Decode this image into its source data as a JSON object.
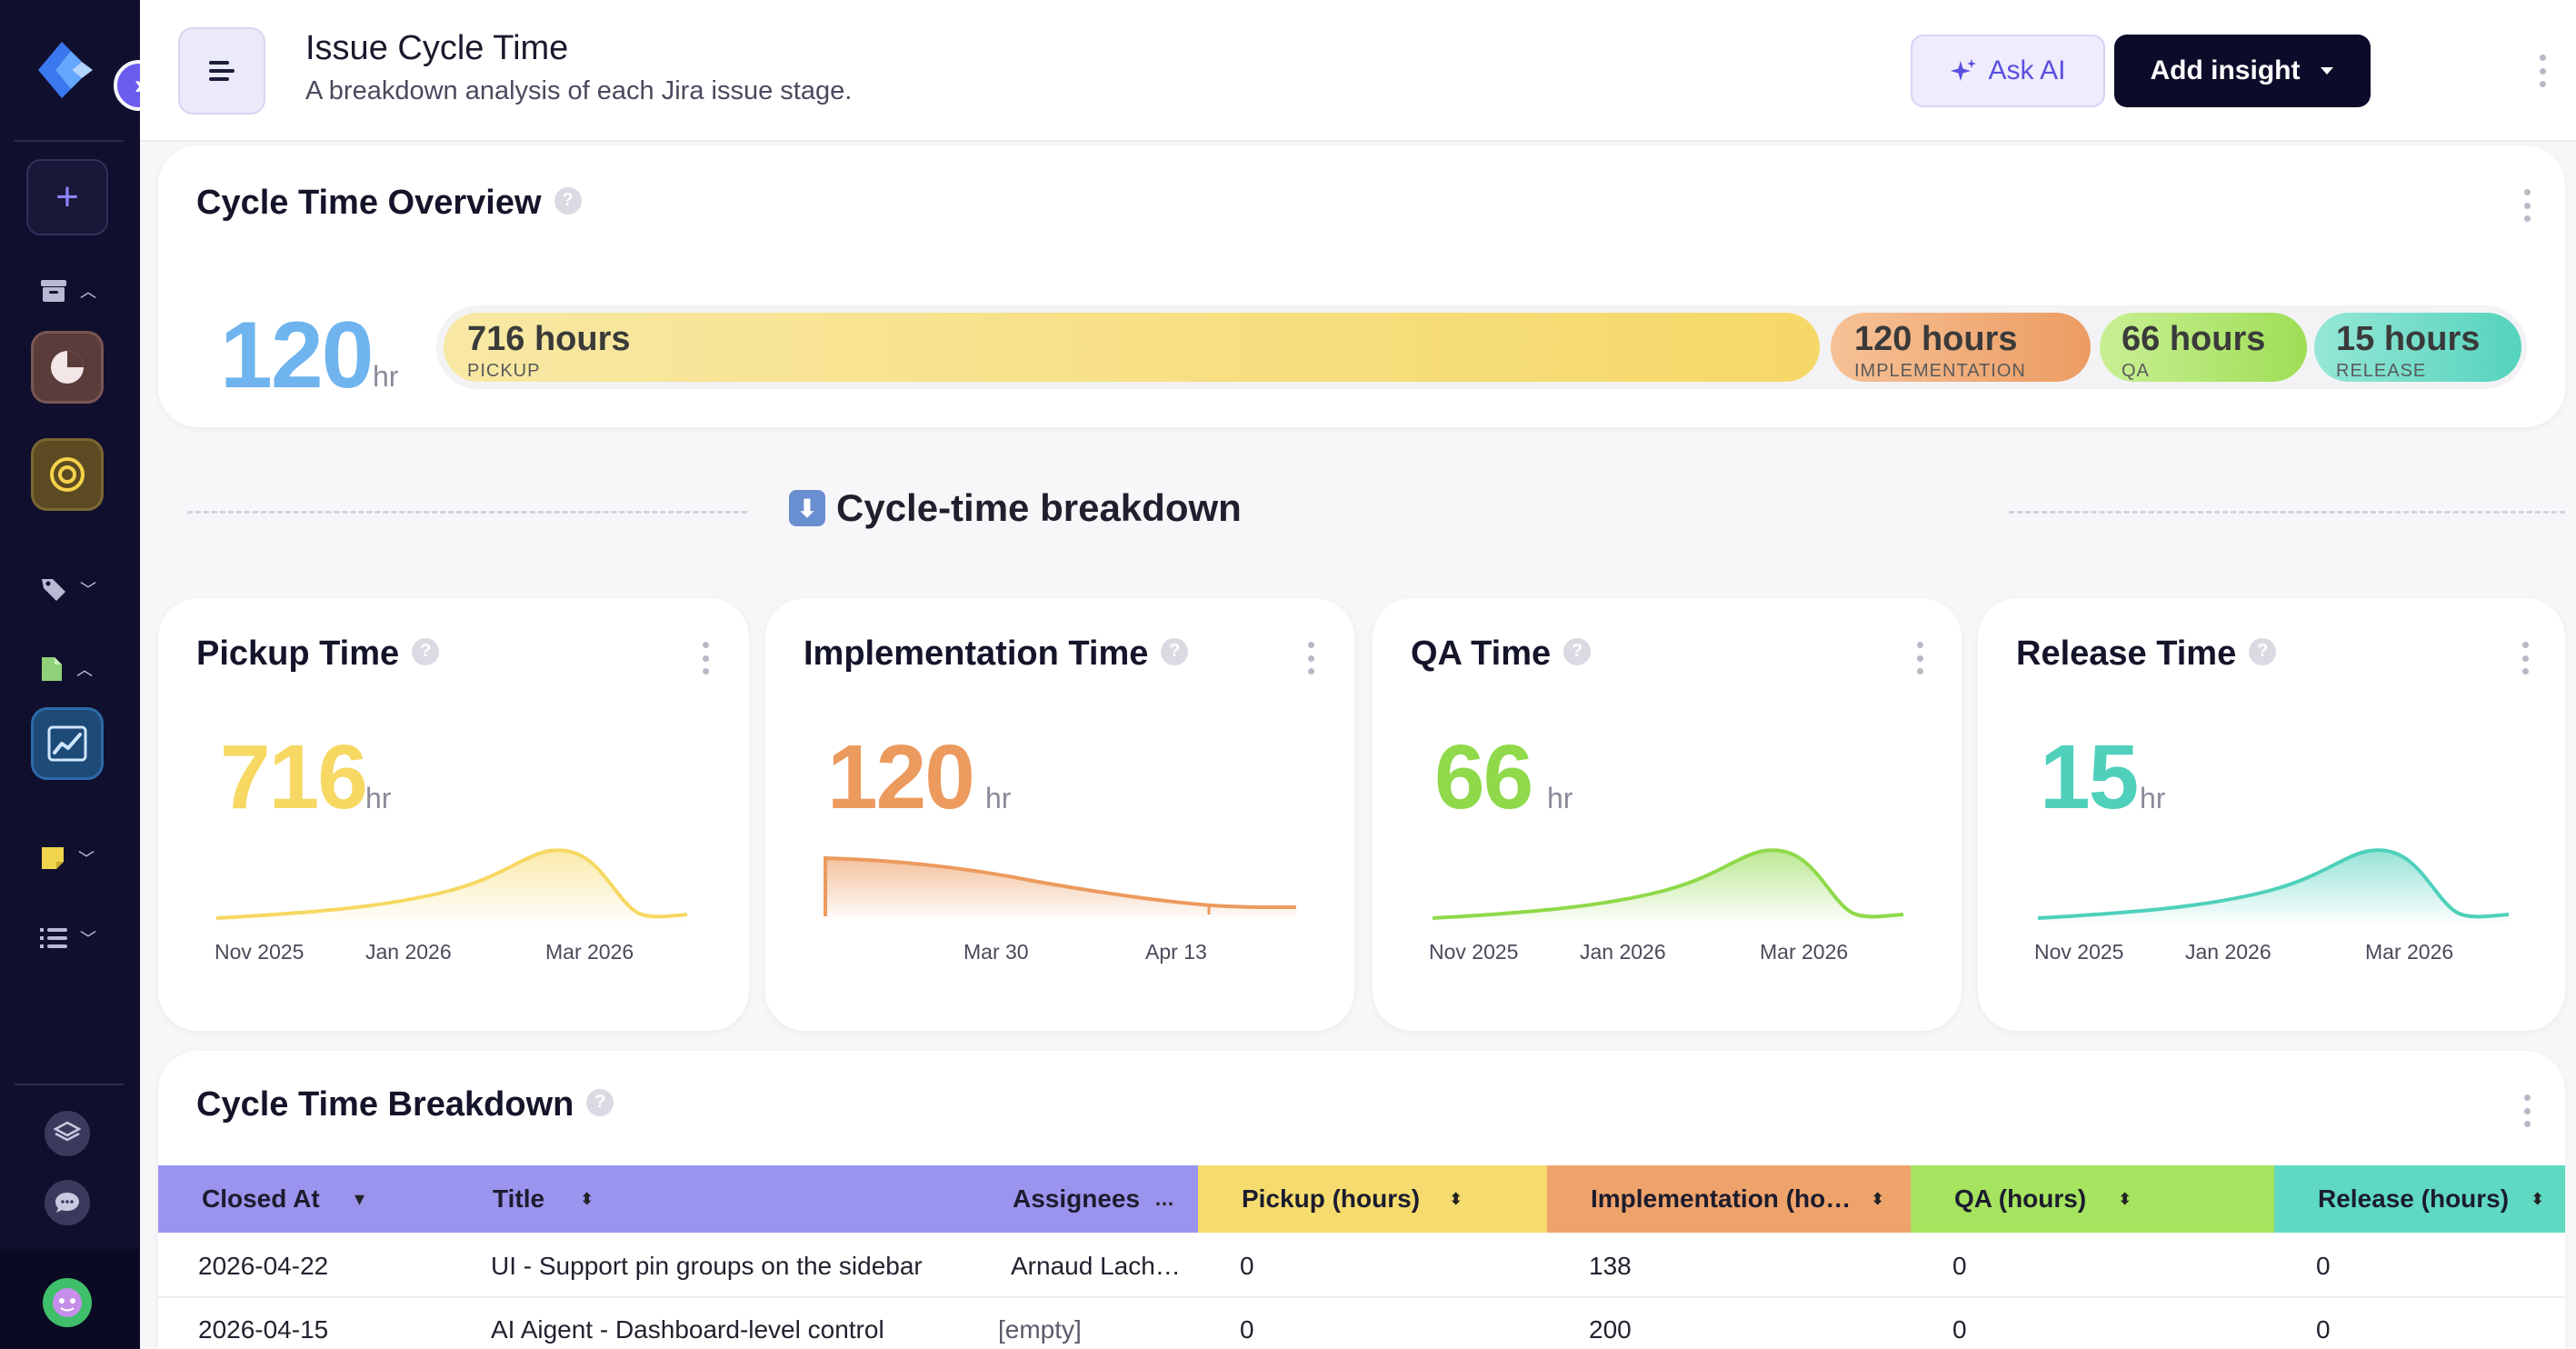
{
  "header": {
    "title": "Issue Cycle Time",
    "subtitle": "A breakdown analysis of each Jira issue stage.",
    "ask_ai_label": "Ask AI",
    "add_insight_label": "Add insight"
  },
  "overview": {
    "title": "Cycle Time Overview",
    "total_value": "120",
    "total_unit": "hr",
    "segments": [
      {
        "hours": "716 hours",
        "label": "PICKUP",
        "color": "#f6dc6e"
      },
      {
        "hours": "120 hours",
        "label": "IMPLEMENTATION",
        "color": "#eea36b"
      },
      {
        "hours": "66 hours",
        "label": "QA",
        "color": "#9fe061"
      },
      {
        "hours": "15 hours",
        "label": "RELEASE",
        "color": "#5fd9c2"
      }
    ]
  },
  "breakdown_section": {
    "title": "Cycle-time breakdown"
  },
  "metric_cards": [
    {
      "title": "Pickup Time",
      "value": "716",
      "unit": "hr",
      "color": "#f6d862",
      "ticks": [
        "Nov 2025",
        "Jan 2026",
        "Mar 2026"
      ]
    },
    {
      "title": "Implementation Time",
      "value": "120",
      "unit": "hr",
      "color": "#ec9a5e",
      "ticks": [
        "Mar 30",
        "Apr 13"
      ]
    },
    {
      "title": "QA Time",
      "value": "66",
      "unit": "hr",
      "color": "#8fd94a",
      "ticks": [
        "Nov 2025",
        "Jan 2026",
        "Mar 2026"
      ]
    },
    {
      "title": "Release Time",
      "value": "15",
      "unit": "hr",
      "color": "#4fd0bb",
      "ticks": [
        "Nov 2025",
        "Jan 2026",
        "Mar 2026"
      ]
    }
  ],
  "table": {
    "title": "Cycle Time Breakdown",
    "columns": [
      {
        "label": "Closed At",
        "color": "#9a94ee"
      },
      {
        "label": "Title",
        "color": "#9a94ee"
      },
      {
        "label": "Assignees",
        "color": "#9a94ee"
      },
      {
        "label": "Pickup (hours)",
        "color": "#f6dc6e"
      },
      {
        "label": "Implementation (ho…",
        "color": "#eea36b"
      },
      {
        "label": "QA (hours)",
        "color": "#a6e35f"
      },
      {
        "label": "Release (hours)",
        "color": "#5fd9c2"
      }
    ],
    "rows": [
      {
        "closed_at": "2026-04-22",
        "title": "UI - Support pin groups on the sidebar",
        "assignees": "Arnaud Lach…",
        "pickup": "0",
        "implementation": "138",
        "qa": "0",
        "release": "0"
      },
      {
        "closed_at": "2026-04-15",
        "title": "AI Aigent - Dashboard-level control",
        "assignees": "[empty]",
        "pickup": "0",
        "implementation": "200",
        "qa": "0",
        "release": "0"
      }
    ]
  },
  "colors": {
    "sidebar_bg": "#10102e",
    "accent": "#6b5cf0",
    "total_value": "#6fb4ee"
  }
}
